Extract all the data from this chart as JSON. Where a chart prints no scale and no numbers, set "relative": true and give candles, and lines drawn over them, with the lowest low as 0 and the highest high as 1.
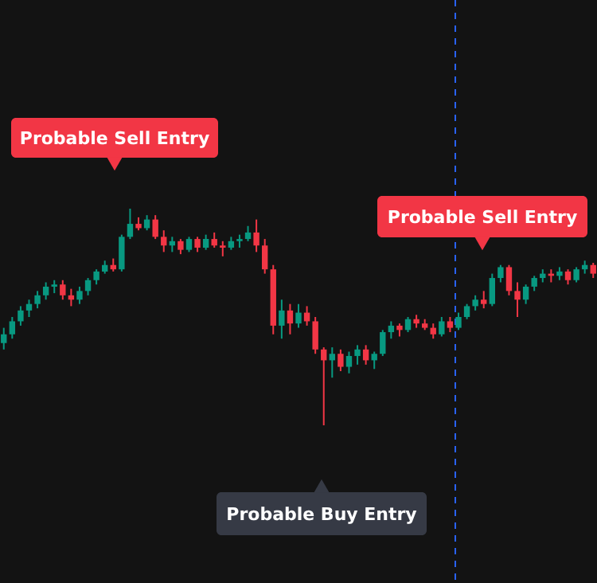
{
  "chart_data": {
    "type": "candlestick",
    "relative": true,
    "categories": [
      null,
      null,
      null,
      null,
      null,
      null,
      null,
      null,
      null,
      null,
      null,
      null,
      null,
      null,
      null,
      null,
      null,
      null,
      null,
      null,
      null,
      null,
      null,
      null,
      null,
      null,
      null,
      null,
      null,
      null,
      null,
      null,
      null,
      null,
      null,
      null,
      null,
      null,
      null,
      null,
      null,
      null,
      null,
      null,
      null,
      null,
      null,
      null,
      null,
      null,
      null,
      null,
      null,
      null,
      null,
      null,
      null,
      null,
      null,
      null,
      null,
      null,
      null,
      null,
      null,
      null,
      null,
      null,
      null,
      null,
      null
    ],
    "ohlc": [
      [
        0.38,
        0.45,
        0.35,
        0.42
      ],
      [
        0.42,
        0.5,
        0.4,
        0.48
      ],
      [
        0.48,
        0.55,
        0.46,
        0.53
      ],
      [
        0.53,
        0.58,
        0.5,
        0.56
      ],
      [
        0.56,
        0.62,
        0.54,
        0.6
      ],
      [
        0.6,
        0.66,
        0.58,
        0.64
      ],
      [
        0.64,
        0.67,
        0.61,
        0.65
      ],
      [
        0.65,
        0.67,
        0.58,
        0.6
      ],
      [
        0.6,
        0.63,
        0.55,
        0.58
      ],
      [
        0.58,
        0.64,
        0.56,
        0.62
      ],
      [
        0.62,
        0.68,
        0.6,
        0.67
      ],
      [
        0.67,
        0.72,
        0.65,
        0.71
      ],
      [
        0.71,
        0.76,
        0.7,
        0.74
      ],
      [
        0.74,
        0.77,
        0.71,
        0.72
      ],
      [
        0.72,
        0.88,
        0.71,
        0.87
      ],
      [
        0.87,
        1.0,
        0.86,
        0.93
      ],
      [
        0.93,
        0.96,
        0.9,
        0.91
      ],
      [
        0.91,
        0.97,
        0.9,
        0.95
      ],
      [
        0.95,
        0.97,
        0.86,
        0.87
      ],
      [
        0.87,
        0.9,
        0.8,
        0.83
      ],
      [
        0.83,
        0.87,
        0.8,
        0.85
      ],
      [
        0.85,
        0.86,
        0.79,
        0.81
      ],
      [
        0.81,
        0.87,
        0.8,
        0.86
      ],
      [
        0.86,
        0.87,
        0.8,
        0.82
      ],
      [
        0.82,
        0.88,
        0.81,
        0.86
      ],
      [
        0.86,
        0.89,
        0.82,
        0.83
      ],
      [
        0.83,
        0.85,
        0.78,
        0.82
      ],
      [
        0.82,
        0.87,
        0.81,
        0.85
      ],
      [
        0.85,
        0.88,
        0.82,
        0.86
      ],
      [
        0.86,
        0.92,
        0.85,
        0.89
      ],
      [
        0.89,
        0.95,
        0.8,
        0.83
      ],
      [
        0.83,
        0.86,
        0.7,
        0.72
      ],
      [
        0.72,
        0.74,
        0.42,
        0.46
      ],
      [
        0.46,
        0.58,
        0.4,
        0.53
      ],
      [
        0.53,
        0.56,
        0.42,
        0.47
      ],
      [
        0.47,
        0.56,
        0.45,
        0.52
      ],
      [
        0.52,
        0.55,
        0.46,
        0.48
      ],
      [
        0.48,
        0.5,
        0.33,
        0.35
      ],
      [
        0.35,
        0.36,
        0.0,
        0.3
      ],
      [
        0.3,
        0.36,
        0.22,
        0.33
      ],
      [
        0.33,
        0.35,
        0.25,
        0.27
      ],
      [
        0.27,
        0.34,
        0.24,
        0.32
      ],
      [
        0.32,
        0.37,
        0.28,
        0.35
      ],
      [
        0.35,
        0.37,
        0.28,
        0.3
      ],
      [
        0.3,
        0.34,
        0.26,
        0.33
      ],
      [
        0.33,
        0.44,
        0.32,
        0.43
      ],
      [
        0.43,
        0.48,
        0.4,
        0.46
      ],
      [
        0.46,
        0.47,
        0.41,
        0.44
      ],
      [
        0.44,
        0.5,
        0.43,
        0.49
      ],
      [
        0.49,
        0.51,
        0.45,
        0.47
      ],
      [
        0.47,
        0.49,
        0.44,
        0.45
      ],
      [
        0.45,
        0.47,
        0.4,
        0.42
      ],
      [
        0.42,
        0.5,
        0.41,
        0.48
      ],
      [
        0.48,
        0.5,
        0.43,
        0.45
      ],
      [
        0.45,
        0.52,
        0.44,
        0.5
      ],
      [
        0.5,
        0.56,
        0.49,
        0.55
      ],
      [
        0.55,
        0.6,
        0.53,
        0.58
      ],
      [
        0.58,
        0.62,
        0.54,
        0.56
      ],
      [
        0.56,
        0.7,
        0.55,
        0.68
      ],
      [
        0.68,
        0.74,
        0.66,
        0.73
      ],
      [
        0.73,
        0.74,
        0.6,
        0.62
      ],
      [
        0.62,
        0.66,
        0.5,
        0.58
      ],
      [
        0.58,
        0.65,
        0.56,
        0.64
      ],
      [
        0.64,
        0.69,
        0.62,
        0.68
      ],
      [
        0.68,
        0.72,
        0.66,
        0.7
      ],
      [
        0.7,
        0.72,
        0.66,
        0.69
      ],
      [
        0.69,
        0.73,
        0.67,
        0.71
      ],
      [
        0.71,
        0.72,
        0.65,
        0.67
      ],
      [
        0.67,
        0.73,
        0.66,
        0.72
      ],
      [
        0.72,
        0.76,
        0.7,
        0.74
      ],
      [
        0.74,
        0.75,
        0.68,
        0.7
      ]
    ],
    "annotations": [
      "Probable Sell Entry",
      "Probable Sell Entry",
      "Probable Buy Entry"
    ]
  }
}
